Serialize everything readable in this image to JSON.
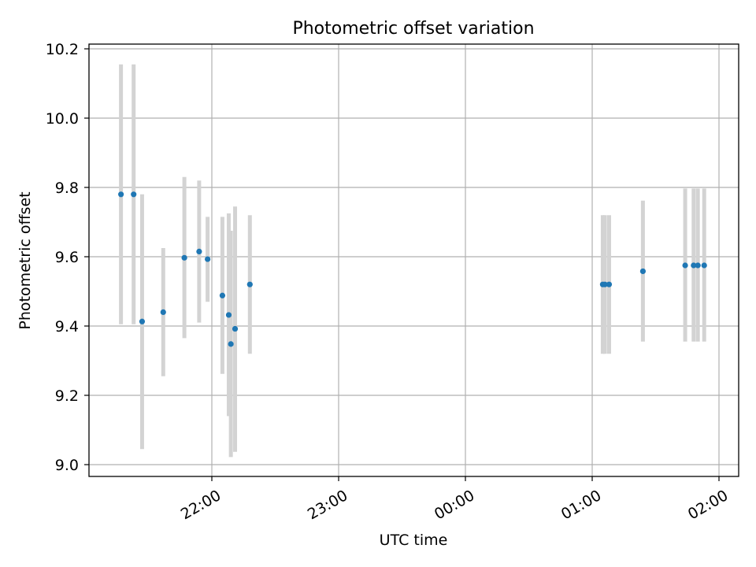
{
  "chart_data": {
    "type": "scatter",
    "title": "Photometric offset variation",
    "xlabel": "UTC time",
    "ylabel": "Photometric offset",
    "x_tick_labels": [
      "22:00",
      "23:00",
      "00:00",
      "01:00",
      "02:00"
    ],
    "y_tick_labels": [
      "9.0",
      "9.2",
      "9.4",
      "9.6",
      "9.8",
      "10.0",
      "10.2"
    ],
    "y_ticks": [
      9.0,
      9.2,
      9.4,
      9.6,
      9.8,
      10.0,
      10.2
    ],
    "grid": true,
    "ylim": [
      8.97,
      10.21
    ],
    "xlim": [
      "21:08",
      "02:05"
    ],
    "marker_color": "#1f77b4",
    "errorbar_color": "#d3d3d3",
    "points": [
      {
        "x": "21:17",
        "y": 9.78,
        "ylow": 9.405,
        "yhigh": 10.155
      },
      {
        "x": "21:23",
        "y": 9.78,
        "ylow": 9.405,
        "yhigh": 10.155
      },
      {
        "x": "21:27",
        "y": 9.413,
        "ylow": 9.045,
        "yhigh": 9.78
      },
      {
        "x": "21:37",
        "y": 9.44,
        "ylow": 9.255,
        "yhigh": 9.625
      },
      {
        "x": "21:47",
        "y": 9.597,
        "ylow": 9.365,
        "yhigh": 9.83
      },
      {
        "x": "21:54",
        "y": 9.615,
        "ylow": 9.41,
        "yhigh": 9.82
      },
      {
        "x": "21:58",
        "y": 9.593,
        "ylow": 9.47,
        "yhigh": 9.715
      },
      {
        "x": "22:05",
        "y": 9.488,
        "ylow": 9.262,
        "yhigh": 9.715
      },
      {
        "x": "22:08",
        "y": 9.432,
        "ylow": 9.14,
        "yhigh": 9.725
      },
      {
        "x": "22:09",
        "y": 9.348,
        "ylow": 9.022,
        "yhigh": 9.675
      },
      {
        "x": "22:11",
        "y": 9.392,
        "ylow": 9.037,
        "yhigh": 9.745
      },
      {
        "x": "22:18",
        "y": 9.52,
        "ylow": 9.32,
        "yhigh": 9.72
      },
      {
        "x": "01:05",
        "y": 9.52,
        "ylow": 9.32,
        "yhigh": 9.72
      },
      {
        "x": "01:06",
        "y": 9.52,
        "ylow": 9.32,
        "yhigh": 9.72
      },
      {
        "x": "01:08",
        "y": 9.52,
        "ylow": 9.32,
        "yhigh": 9.72
      },
      {
        "x": "01:24",
        "y": 9.558,
        "ylow": 9.355,
        "yhigh": 9.762
      },
      {
        "x": "01:44",
        "y": 9.575,
        "ylow": 9.355,
        "yhigh": 9.797
      },
      {
        "x": "01:48",
        "y": 9.575,
        "ylow": 9.355,
        "yhigh": 9.797
      },
      {
        "x": "01:50",
        "y": 9.575,
        "ylow": 9.355,
        "yhigh": 9.797
      },
      {
        "x": "01:53",
        "y": 9.575,
        "ylow": 9.355,
        "yhigh": 9.797
      }
    ]
  }
}
